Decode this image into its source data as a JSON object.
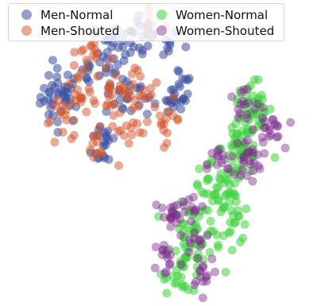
{
  "chart_data": {
    "type": "scatter",
    "title": "",
    "xlabel": "",
    "ylabel": "",
    "axes_visible": false,
    "grid": false,
    "legend": {
      "position": "top-left",
      "columns": 2
    },
    "xlim": [
      -45,
      45
    ],
    "ylim": [
      -45,
      42
    ],
    "series": [
      {
        "name": "Men-Normal",
        "color": "#3a4fa0",
        "alpha": 0.55,
        "clusters": [
          {
            "cx": -28,
            "cy": 15,
            "sx": 3,
            "sy": 4,
            "n": 40
          },
          {
            "cx": -12,
            "cy": 28,
            "sx": 3,
            "sy": 4,
            "n": 30
          },
          {
            "cx": -2,
            "cy": 31,
            "sx": 5,
            "sy": 3,
            "n": 25
          },
          {
            "cx": -9,
            "cy": 15,
            "sx": 3,
            "sy": 3,
            "n": 20
          },
          {
            "cx": 2,
            "cy": 14,
            "sx": 3,
            "sy": 3,
            "n": 15
          },
          {
            "cx": 7,
            "cy": 18,
            "sx": 2,
            "sy": 4,
            "n": 15
          },
          {
            "cx": -15,
            "cy": 2,
            "sx": 2,
            "sy": 4,
            "n": 20
          },
          {
            "cx": -20,
            "cy": 22,
            "sx": 3,
            "sy": 3,
            "n": 12
          }
        ]
      },
      {
        "name": "Men-Shouted",
        "color": "#d2552c",
        "alpha": 0.5,
        "clusters": [
          {
            "cx": -20,
            "cy": 27,
            "sx": 3,
            "sy": 3,
            "n": 20
          },
          {
            "cx": -22,
            "cy": 15,
            "sx": 2,
            "sy": 3,
            "n": 15
          },
          {
            "cx": -14,
            "cy": 15,
            "sx": 2,
            "sy": 3,
            "n": 15
          },
          {
            "cx": -17,
            "cy": 1,
            "sx": 2,
            "sy": 3,
            "n": 12
          },
          {
            "cx": -5,
            "cy": 18,
            "sx": 3,
            "sy": 3,
            "n": 20
          },
          {
            "cx": -8,
            "cy": 5,
            "sx": 3,
            "sy": 3,
            "n": 15
          },
          {
            "cx": 3,
            "cy": 8,
            "sx": 2,
            "sy": 3,
            "n": 15
          },
          {
            "cx": -27,
            "cy": 8,
            "sx": 3,
            "sy": 3,
            "n": 15
          },
          {
            "cx": -3,
            "cy": 36,
            "sx": 3,
            "sy": 2,
            "n": 8
          }
        ]
      },
      {
        "name": "Women-Normal",
        "color": "#3fd23f",
        "alpha": 0.55,
        "clusters": [
          {
            "cx": 28,
            "cy": 10,
            "sx": 3,
            "sy": 5,
            "n": 45
          },
          {
            "cx": 25,
            "cy": 0,
            "sx": 3,
            "sy": 4,
            "n": 35
          },
          {
            "cx": 18,
            "cy": -12,
            "sx": 4,
            "sy": 4,
            "n": 40
          },
          {
            "cx": 12,
            "cy": -25,
            "sx": 4,
            "sy": 5,
            "n": 45
          },
          {
            "cx": 8,
            "cy": -36,
            "sx": 3,
            "sy": 3,
            "n": 25
          },
          {
            "cx": 22,
            "cy": -20,
            "sx": 3,
            "sy": 4,
            "n": 25
          }
        ]
      },
      {
        "name": "Women-Shouted",
        "color": "#7a2a8a",
        "alpha": 0.45,
        "clusters": [
          {
            "cx": 33,
            "cy": 5,
            "sx": 2,
            "sy": 3,
            "n": 20
          },
          {
            "cx": 27,
            "cy": -3,
            "sx": 2,
            "sy": 3,
            "n": 25
          },
          {
            "cx": 25,
            "cy": 12,
            "sx": 3,
            "sy": 3,
            "n": 15
          },
          {
            "cx": 19,
            "cy": -5,
            "sx": 2,
            "sy": 3,
            "n": 15
          },
          {
            "cx": 5,
            "cy": -20,
            "sx": 3,
            "sy": 3,
            "n": 20
          },
          {
            "cx": 10,
            "cy": -17,
            "sx": 2,
            "sy": 2,
            "n": 10
          },
          {
            "cx": 3,
            "cy": -32,
            "sx": 2,
            "sy": 3,
            "n": 15
          },
          {
            "cx": 14,
            "cy": -35,
            "sx": 2,
            "sy": 3,
            "n": 15
          },
          {
            "cx": 12,
            "cy": -27,
            "sx": 2,
            "sy": 2,
            "n": 10
          }
        ]
      }
    ]
  }
}
